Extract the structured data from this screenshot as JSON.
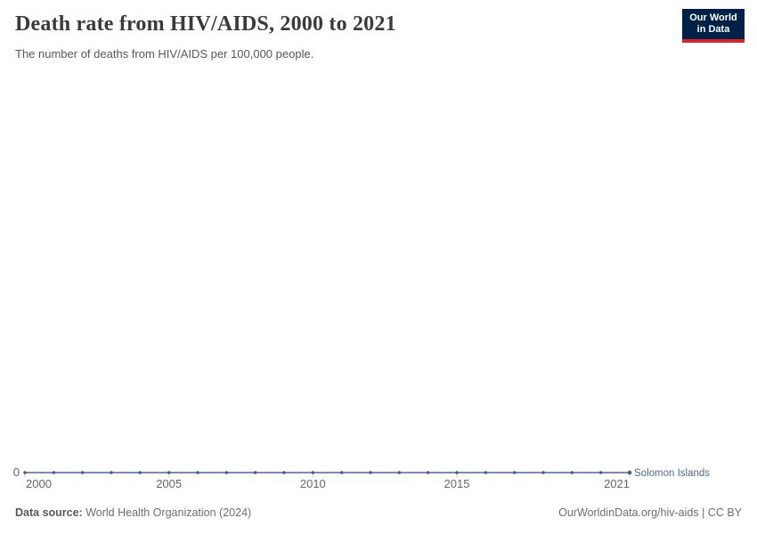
{
  "header": {
    "title": "Death rate from HIV/AIDS, 2000 to 2021",
    "subtitle": "The number of deaths from HIV/AIDS per 100,000 people.",
    "logo": {
      "line1": "Our World",
      "line2": "in Data",
      "bg_color": "#002147",
      "accent_color": "#d8232a"
    }
  },
  "chart_data": {
    "type": "line",
    "title": "Death rate from HIV/AIDS, 2000 to 2021",
    "subtitle": "The number of deaths from HIV/AIDS per 100,000 people.",
    "xlabel": "",
    "ylabel": "",
    "x_range": [
      2000,
      2021
    ],
    "y_range": [
      0,
      1
    ],
    "x_ticks": [
      2000,
      2005,
      2010,
      2015,
      2021
    ],
    "y_ticks": [
      "0"
    ],
    "grid": false,
    "legend_position": "end-of-line",
    "axis_text_color": "#666666",
    "tick_color": "#c8c8c8",
    "series": [
      {
        "name": "Solomon Islands",
        "color": "#4c6a9c",
        "point_color": "#3d5c94",
        "x": [
          2000,
          2001,
          2002,
          2003,
          2004,
          2005,
          2006,
          2007,
          2008,
          2009,
          2010,
          2011,
          2012,
          2013,
          2014,
          2015,
          2016,
          2017,
          2018,
          2019,
          2020,
          2021
        ],
        "values": [
          0,
          0,
          0,
          0,
          0,
          0,
          0,
          0,
          0,
          0,
          0,
          0,
          0,
          0,
          0,
          0,
          0,
          0,
          0,
          0,
          0,
          0
        ]
      }
    ]
  },
  "footer": {
    "source_label": "Data source:",
    "source_value": "World Health Organization (2024)",
    "link_text": "OurWorldinData.org/hiv-aids | CC BY"
  }
}
